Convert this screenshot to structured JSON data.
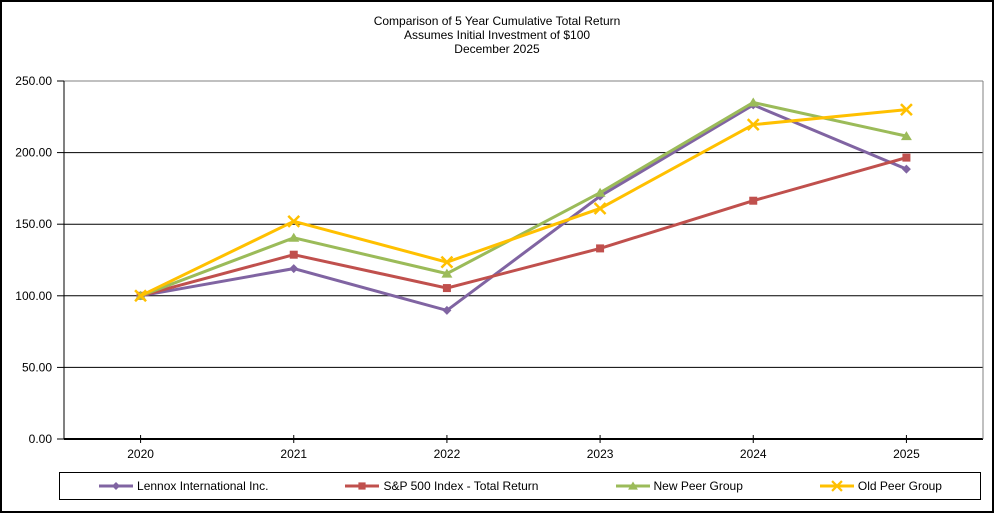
{
  "title": {
    "line1": "Comparison of 5 Year Cumulative Total Return",
    "line2": "Assumes Initial Investment of $100",
    "line3": "December 2025"
  },
  "chart_data": {
    "type": "line",
    "x": [
      "2020",
      "2021",
      "2022",
      "2023",
      "2024",
      "2025"
    ],
    "series": [
      {
        "name": "Lennox International Inc.",
        "marker": "diamond",
        "color": "#8064A2",
        "values": [
          100.0,
          119.0,
          89.8,
          169.6,
          233.3,
          188.5
        ]
      },
      {
        "name": "S&P 500 Index - Total Return",
        "marker": "square",
        "color": "#C0504D",
        "values": [
          100.0,
          128.7,
          105.4,
          133.1,
          166.4,
          196.5
        ]
      },
      {
        "name": "New Peer Group",
        "marker": "triangle",
        "color": "#9BBB59",
        "values": [
          100.0,
          140.5,
          115.5,
          172.0,
          235.0,
          211.5
        ]
      },
      {
        "name": "Old Peer Group",
        "marker": "x",
        "color": "#FFC000",
        "values": [
          100.0,
          152.0,
          123.5,
          161.0,
          219.5,
          230.0
        ]
      }
    ],
    "ylim": [
      0,
      250
    ],
    "ytick_step": 50,
    "ytick_labels": [
      "0.00",
      "50.00",
      "100.00",
      "150.00",
      "200.00",
      "250.00"
    ],
    "grid": "horizontal",
    "gridline_color": "#000000",
    "plot_border_color": "#808080",
    "legend_position": "bottom",
    "background": "#ffffff"
  }
}
